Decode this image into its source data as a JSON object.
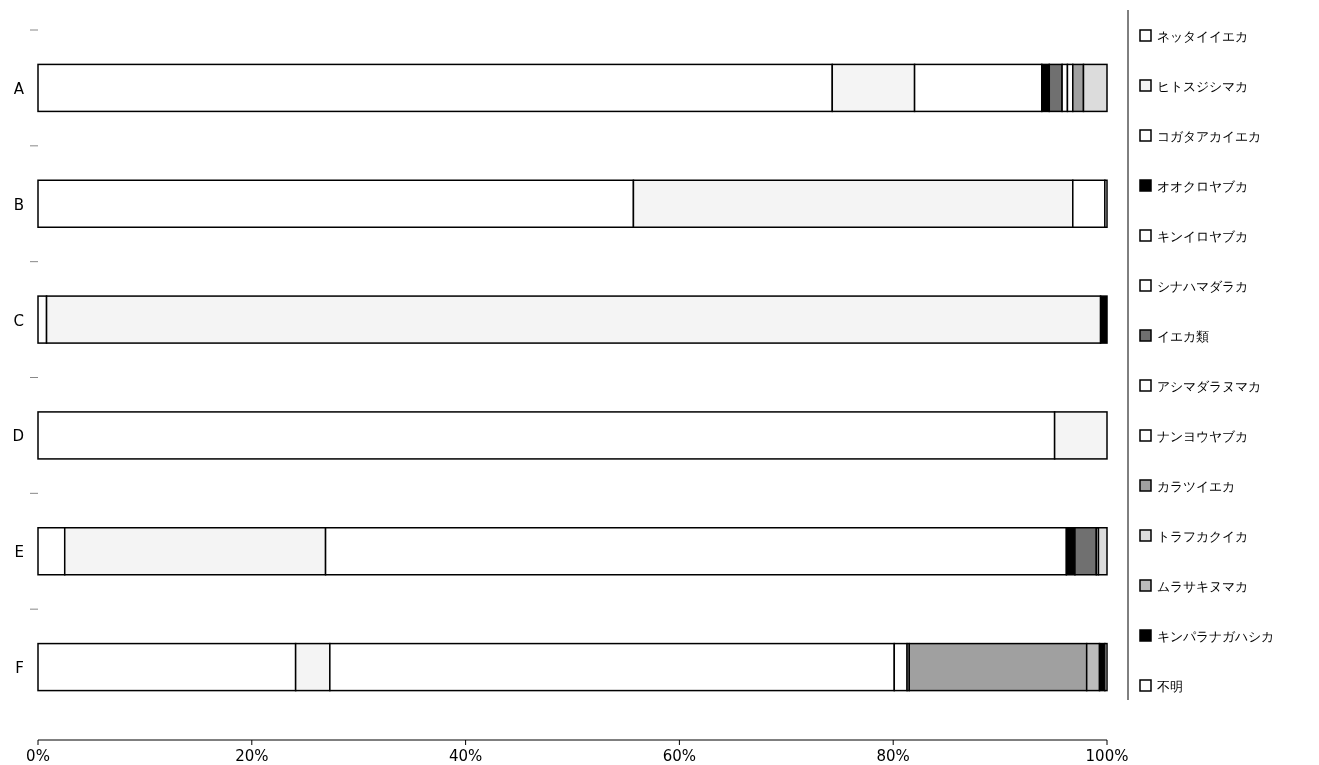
{
  "chart_data": {
    "type": "bar",
    "orientation": "horizontal",
    "stacked": true,
    "categories": [
      "A",
      "B",
      "C",
      "D",
      "E",
      "F"
    ],
    "xlim": [
      0,
      100
    ],
    "xticks": [
      {
        "value": 0,
        "label": "0%"
      },
      {
        "value": 20,
        "label": "20%"
      },
      {
        "value": 40,
        "label": "40%"
      },
      {
        "value": 60,
        "label": "60%"
      },
      {
        "value": 80,
        "label": "80%"
      },
      {
        "value": 100,
        "label": "100%"
      }
    ],
    "legend": "right",
    "grid": false,
    "series": [
      {
        "name": "ネッタイイエカ",
        "color": "#ffffff",
        "values": [
          74.3,
          55.7,
          0.8,
          95.1,
          2.5,
          24.1
        ]
      },
      {
        "name": "ヒトスジシマカ",
        "color": "#f4f4f4",
        "values": [
          7.7,
          41.1,
          98.6,
          4.9,
          24.4,
          3.2
        ]
      },
      {
        "name": "コガタアカイエカ",
        "color": "#ffffff",
        "values": [
          11.9,
          3.0,
          0,
          0,
          69.3,
          52.8
        ]
      },
      {
        "name": "オオクロヤブカ",
        "color": "#000000",
        "values": [
          0.7,
          0,
          0,
          0,
          0.8,
          0
        ]
      },
      {
        "name": "キンイロヤブカ",
        "color": "#ffffff",
        "values": [
          0,
          0,
          0,
          0,
          0,
          1.2
        ]
      },
      {
        "name": "シナハマダラカ",
        "color": "#ffffff",
        "values": [
          0,
          0,
          0,
          0,
          0,
          0.2
        ]
      },
      {
        "name": "イエカ類",
        "color": "#707070",
        "values": [
          1.2,
          0,
          0,
          0,
          2.0,
          0
        ]
      },
      {
        "name": "アシマダラヌマカ",
        "color": "#ffffff",
        "values": [
          0.5,
          0,
          0,
          0,
          0,
          0
        ]
      },
      {
        "name": "ナンヨウヤブカ",
        "color": "#ffffff",
        "values": [
          0.5,
          0,
          0,
          0,
          0.2,
          0
        ]
      },
      {
        "name": "カラツイエカ",
        "color": "#a0a0a0",
        "values": [
          1.0,
          0,
          0,
          0,
          0,
          16.6
        ]
      },
      {
        "name": "トラフカクイカ",
        "color": "#dcdcdc",
        "values": [
          2.2,
          0,
          0,
          0,
          0.8,
          0
        ]
      },
      {
        "name": "ムラサキヌマカ",
        "color": "#bcbcbc",
        "values": [
          0,
          0,
          0,
          0,
          0,
          1.2
        ]
      },
      {
        "name": "キンパラナガハシカ",
        "color": "#000000",
        "values": [
          0,
          0,
          0.6,
          0,
          0,
          0.5
        ]
      },
      {
        "name": "不明",
        "color": "#ffffff",
        "values": [
          0,
          0.2,
          0,
          0,
          0,
          0.2
        ]
      }
    ]
  }
}
